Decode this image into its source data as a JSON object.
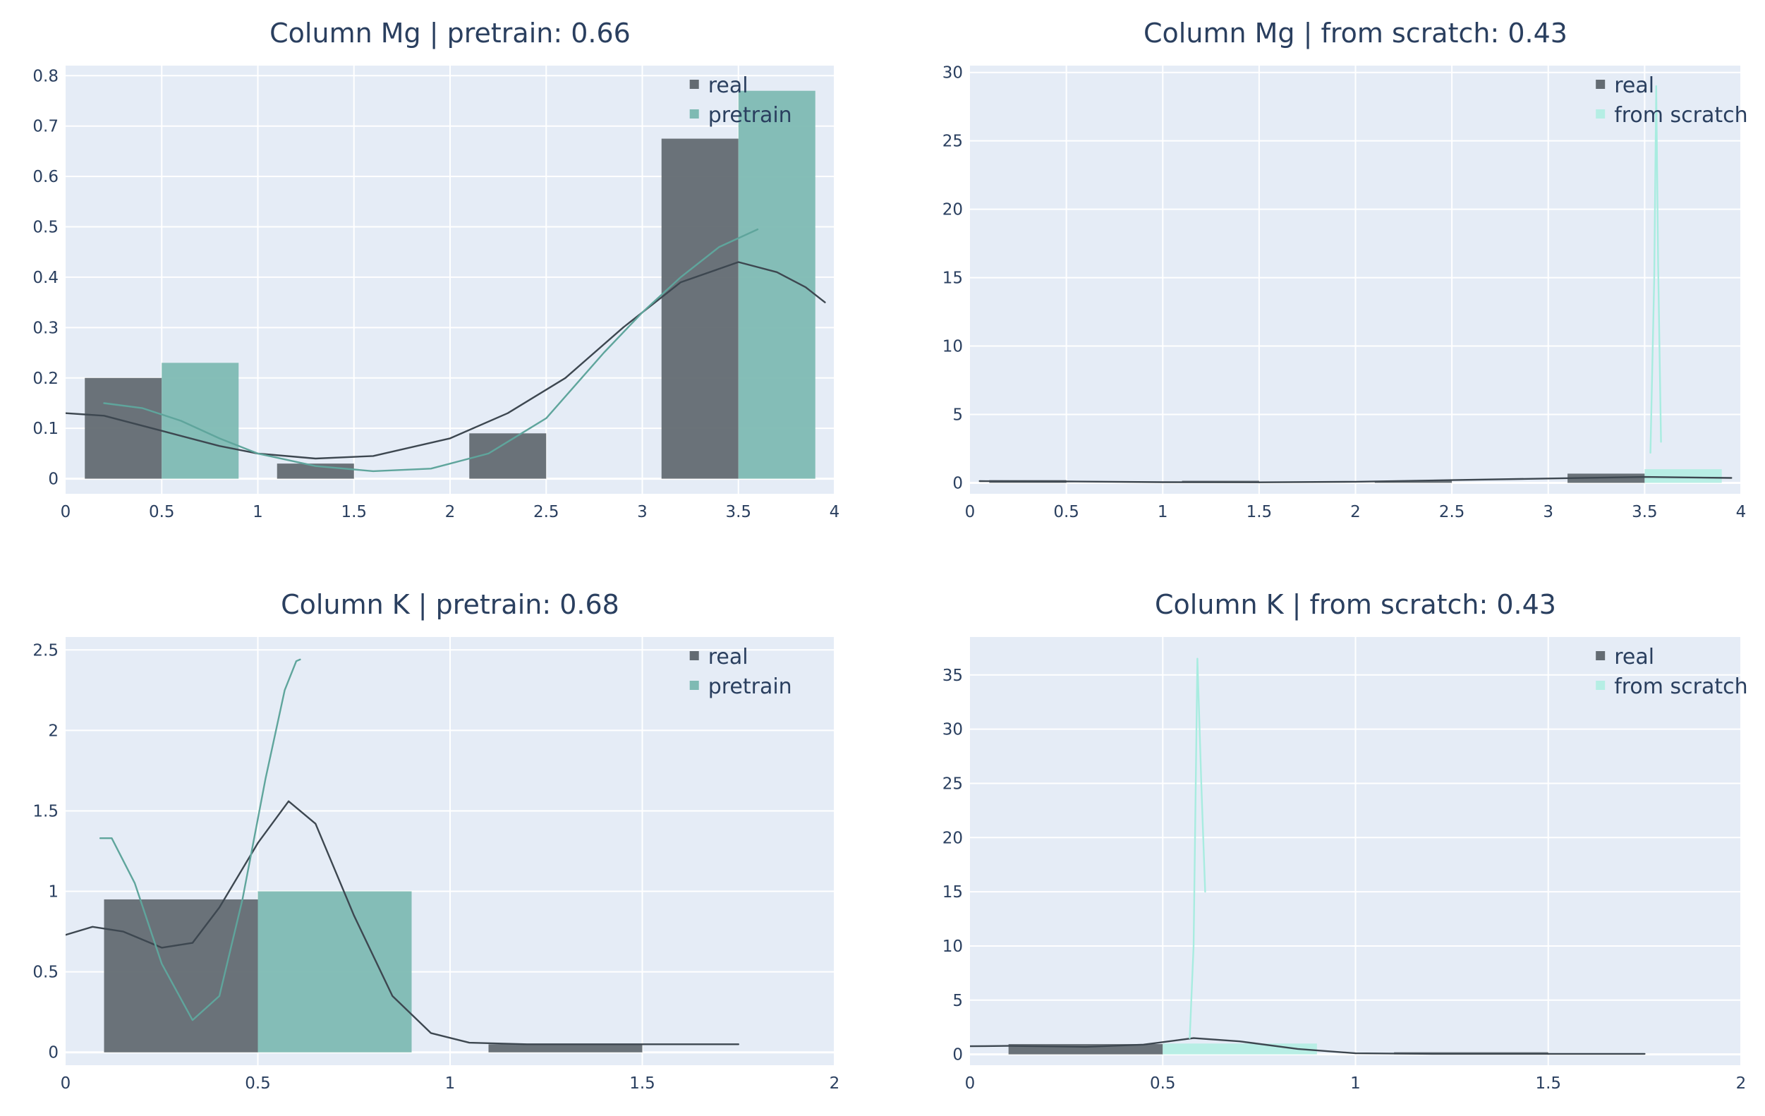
{
  "chart_data": [
    {
      "type": "bar",
      "title": "Column Mg | pretrain: 0.66",
      "xlim": [
        0,
        4
      ],
      "ylim": [
        -0.03,
        0.82
      ],
      "xticks": [
        0,
        0.5,
        1,
        1.5,
        2,
        2.5,
        3,
        3.5,
        4
      ],
      "xtick_labels": [
        "0",
        "0.5",
        "1",
        "1.5",
        "2",
        "2.5",
        "3",
        "3.5",
        "4"
      ],
      "yticks": [
        0,
        0.1,
        0.2,
        0.3,
        0.4,
        0.5,
        0.6,
        0.7,
        0.8
      ],
      "ytick_labels": [
        "0",
        "0.1",
        "0.2",
        "0.3",
        "0.4",
        "0.5",
        "0.6",
        "0.7",
        "0.8"
      ],
      "grid": true,
      "legend_position": "top-right",
      "series": [
        {
          "name": "real",
          "color": "#636b72",
          "bars": [
            {
              "x0": 0.1,
              "x1": 0.5,
              "y": 0.2
            },
            {
              "x0": 1.1,
              "x1": 1.5,
              "y": 0.03
            },
            {
              "x0": 2.1,
              "x1": 2.5,
              "y": 0.09
            },
            {
              "x0": 3.1,
              "x1": 3.5,
              "y": 0.675
            }
          ],
          "curve": [
            [
              0,
              0.13
            ],
            [
              0.2,
              0.125
            ],
            [
              0.5,
              0.095
            ],
            [
              0.8,
              0.065
            ],
            [
              1.0,
              0.05
            ],
            [
              1.3,
              0.04
            ],
            [
              1.6,
              0.045
            ],
            [
              2.0,
              0.08
            ],
            [
              2.3,
              0.13
            ],
            [
              2.6,
              0.2
            ],
            [
              2.9,
              0.3
            ],
            [
              3.2,
              0.39
            ],
            [
              3.5,
              0.43
            ],
            [
              3.7,
              0.41
            ],
            [
              3.85,
              0.38
            ],
            [
              3.95,
              0.35
            ]
          ]
        },
        {
          "name": "pretrain",
          "color": "#7ebab3",
          "bars": [
            {
              "x0": 0.5,
              "x1": 0.9,
              "y": 0.23
            },
            {
              "x0": 3.5,
              "x1": 3.9,
              "y": 0.77
            }
          ],
          "curve": [
            [
              0.2,
              0.15
            ],
            [
              0.4,
              0.14
            ],
            [
              0.6,
              0.115
            ],
            [
              0.8,
              0.08
            ],
            [
              1.0,
              0.05
            ],
            [
              1.3,
              0.025
            ],
            [
              1.6,
              0.015
            ],
            [
              1.9,
              0.02
            ],
            [
              2.2,
              0.05
            ],
            [
              2.5,
              0.12
            ],
            [
              2.8,
              0.25
            ],
            [
              3.0,
              0.33
            ],
            [
              3.2,
              0.4
            ],
            [
              3.4,
              0.46
            ],
            [
              3.6,
              0.495
            ]
          ]
        }
      ]
    },
    {
      "type": "bar",
      "title": "Column Mg | from scratch: 0.43",
      "xlim": [
        0,
        4
      ],
      "ylim": [
        -0.8,
        30.5
      ],
      "xticks": [
        0,
        0.5,
        1,
        1.5,
        2,
        2.5,
        3,
        3.5,
        4
      ],
      "xtick_labels": [
        "0",
        "0.5",
        "1",
        "1.5",
        "2",
        "2.5",
        "3",
        "3.5",
        "4"
      ],
      "yticks": [
        0,
        5,
        10,
        15,
        20,
        25,
        30
      ],
      "ytick_labels": [
        "0",
        "5",
        "10",
        "15",
        "20",
        "25",
        "30"
      ],
      "grid": true,
      "legend_position": "top-right",
      "series": [
        {
          "name": "real",
          "color": "#636b72",
          "bars": [
            {
              "x0": 0.1,
              "x1": 0.5,
              "y": 0.2
            },
            {
              "x0": 1.1,
              "x1": 1.5,
              "y": 0.03
            },
            {
              "x0": 2.1,
              "x1": 2.5,
              "y": 0.09
            },
            {
              "x0": 3.1,
              "x1": 3.5,
              "y": 0.675
            }
          ],
          "curve": [
            [
              0.05,
              0.13
            ],
            [
              0.5,
              0.1
            ],
            [
              1.0,
              0.05
            ],
            [
              1.5,
              0.04
            ],
            [
              2.0,
              0.08
            ],
            [
              2.5,
              0.2
            ],
            [
              3.0,
              0.32
            ],
            [
              3.5,
              0.43
            ],
            [
              3.95,
              0.36
            ]
          ]
        },
        {
          "name": "from scratch",
          "color": "#b5eee4",
          "bars": [
            {
              "x0": 3.5,
              "x1": 3.9,
              "y": 1.0
            }
          ],
          "curve": [
            [
              3.53,
              2.2
            ],
            [
              3.55,
              15
            ],
            [
              3.56,
              29
            ],
            [
              3.57,
              16
            ],
            [
              3.585,
              3
            ]
          ]
        }
      ]
    },
    {
      "type": "bar",
      "title": "Column K | pretrain: 0.68",
      "xlim": [
        0,
        2
      ],
      "ylim": [
        -0.08,
        2.58
      ],
      "xticks": [
        0,
        0.5,
        1,
        1.5,
        2
      ],
      "xtick_labels": [
        "0",
        "0.5",
        "1",
        "1.5",
        "2"
      ],
      "yticks": [
        0,
        0.5,
        1,
        1.5,
        2,
        2.5
      ],
      "ytick_labels": [
        "0",
        "0.5",
        "1",
        "1.5",
        "2",
        "2.5"
      ],
      "grid": true,
      "legend_position": "top-right",
      "series": [
        {
          "name": "real",
          "color": "#636b72",
          "bars": [
            {
              "x0": 0.1,
              "x1": 0.5,
              "y": 0.95
            },
            {
              "x0": 1.1,
              "x1": 1.5,
              "y": 0.05
            }
          ],
          "curve": [
            [
              0,
              0.73
            ],
            [
              0.07,
              0.78
            ],
            [
              0.15,
              0.75
            ],
            [
              0.25,
              0.65
            ],
            [
              0.33,
              0.68
            ],
            [
              0.4,
              0.9
            ],
            [
              0.5,
              1.3
            ],
            [
              0.58,
              1.56
            ],
            [
              0.65,
              1.42
            ],
            [
              0.75,
              0.85
            ],
            [
              0.85,
              0.35
            ],
            [
              0.95,
              0.12
            ],
            [
              1.05,
              0.06
            ],
            [
              1.2,
              0.05
            ],
            [
              1.5,
              0.05
            ],
            [
              1.75,
              0.05
            ]
          ]
        },
        {
          "name": "pretrain",
          "color": "#7ebab3",
          "bars": [
            {
              "x0": 0.5,
              "x1": 0.9,
              "y": 1.0
            }
          ],
          "curve": [
            [
              0.09,
              1.33
            ],
            [
              0.12,
              1.33
            ],
            [
              0.18,
              1.05
            ],
            [
              0.25,
              0.55
            ],
            [
              0.33,
              0.2
            ],
            [
              0.4,
              0.35
            ],
            [
              0.46,
              0.95
            ],
            [
              0.52,
              1.7
            ],
            [
              0.57,
              2.25
            ],
            [
              0.6,
              2.43
            ],
            [
              0.61,
              2.44
            ]
          ]
        }
      ]
    },
    {
      "type": "bar",
      "title": "Column K | from scratch: 0.43",
      "xlim": [
        0,
        2
      ],
      "ylim": [
        -1.0,
        38.5
      ],
      "xticks": [
        0,
        0.5,
        1,
        1.5,
        2
      ],
      "xtick_labels": [
        "0",
        "0.5",
        "1",
        "1.5",
        "2"
      ],
      "yticks": [
        0,
        5,
        10,
        15,
        20,
        25,
        30,
        35
      ],
      "ytick_labels": [
        "0",
        "5",
        "10",
        "15",
        "20",
        "25",
        "30",
        "35"
      ],
      "grid": true,
      "legend_position": "top-right",
      "series": [
        {
          "name": "real",
          "color": "#636b72",
          "bars": [
            {
              "x0": 0.1,
              "x1": 0.5,
              "y": 0.95
            },
            {
              "x0": 1.1,
              "x1": 1.5,
              "y": 0.05
            }
          ],
          "curve": [
            [
              0,
              0.75
            ],
            [
              0.1,
              0.78
            ],
            [
              0.3,
              0.7
            ],
            [
              0.45,
              0.9
            ],
            [
              0.58,
              1.5
            ],
            [
              0.7,
              1.2
            ],
            [
              0.85,
              0.5
            ],
            [
              1.0,
              0.1
            ],
            [
              1.2,
              0.05
            ],
            [
              1.75,
              0.05
            ]
          ]
        },
        {
          "name": "from scratch",
          "color": "#b5eee4",
          "bars": [
            {
              "x0": 0.5,
              "x1": 0.9,
              "y": 1.0
            }
          ],
          "curve": [
            [
              0.57,
              1.5
            ],
            [
              0.58,
              10
            ],
            [
              0.59,
              36.5
            ],
            [
              0.6,
              25
            ],
            [
              0.61,
              15
            ]
          ]
        }
      ]
    }
  ]
}
